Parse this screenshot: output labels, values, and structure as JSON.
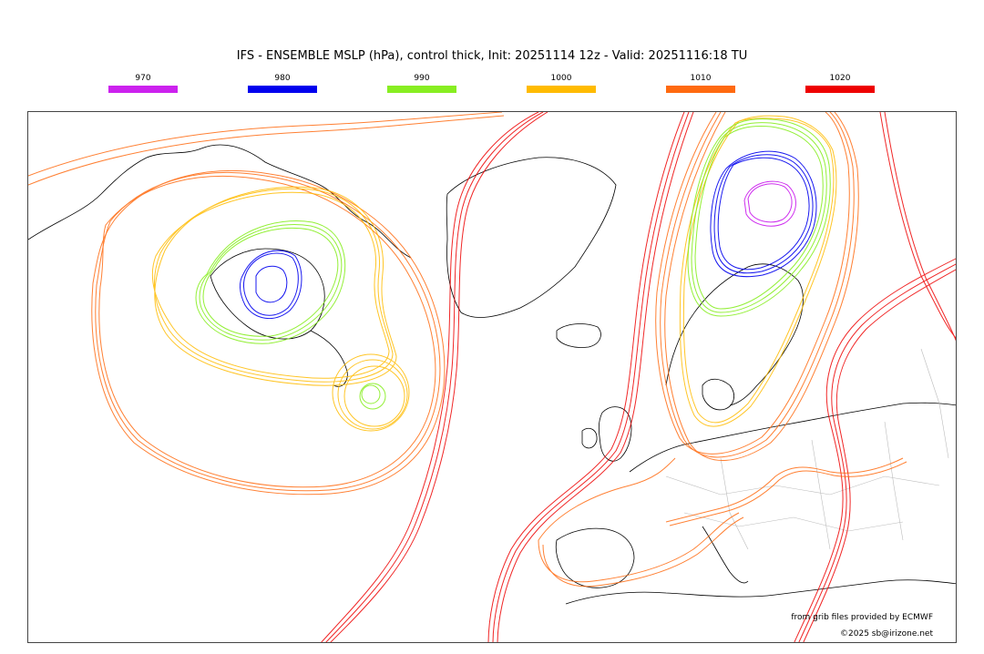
{
  "title": "IFS - ENSEMBLE MSLP (hPa), control thick, Init: 20251114 12z - Valid: 20251116:18 TU",
  "legend": [
    {
      "label": "970",
      "color": "#cc22ee"
    },
    {
      "label": "980",
      "color": "#0000ee"
    },
    {
      "label": "990",
      "color": "#88ee22"
    },
    {
      "label": "1000",
      "color": "#ffbb00"
    },
    {
      "label": "1010",
      "color": "#ff6a10"
    },
    {
      "label": "1020",
      "color": "#ee0000"
    }
  ],
  "credits": {
    "source": "from grib files provided by ECMWF",
    "copyright": "©2025 sb@irizone.net"
  }
}
